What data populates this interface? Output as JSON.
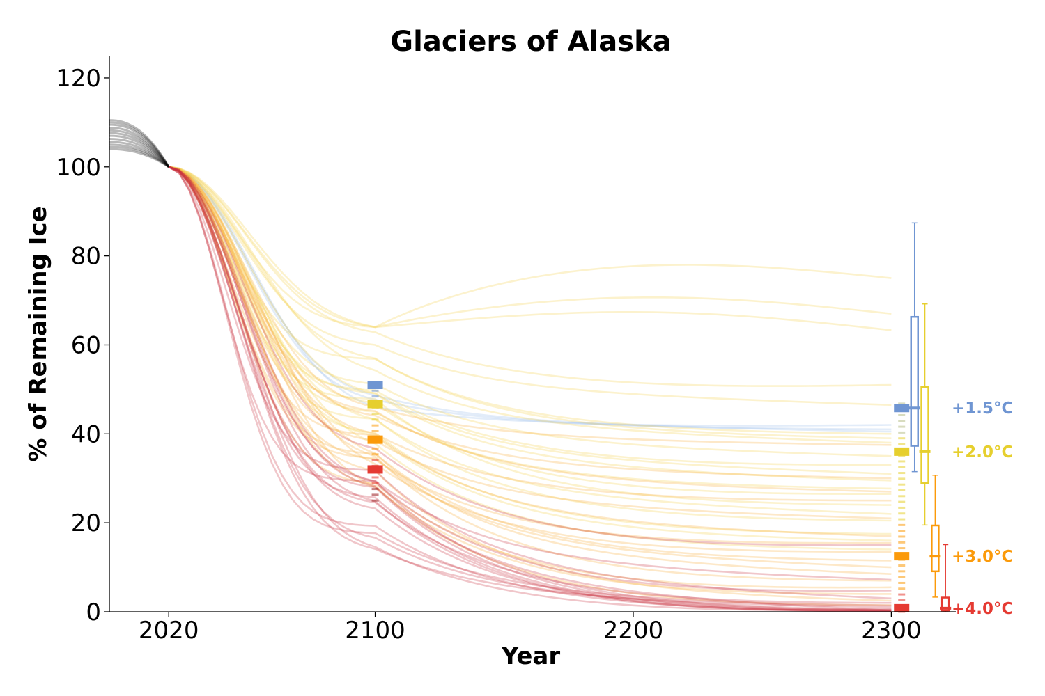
{
  "chart_data": {
    "type": "line",
    "title": "Glaciers of Alaska",
    "xlabel": "Year",
    "ylabel": "% of Remaining Ice",
    "xlim": [
      1997,
      2325
    ],
    "ylim": [
      0,
      125
    ],
    "xticks": [
      2020,
      2100,
      2200,
      2300
    ],
    "yticks": [
      0,
      20,
      40,
      60,
      80,
      100,
      120
    ],
    "grid": false,
    "legend": "right-side text labels",
    "historical": {
      "color": "#000000",
      "x_range": [
        1997,
        2020
      ],
      "start_values": [
        104.0,
        104.5,
        105.0,
        105.6,
        106.3,
        107.0,
        107.6,
        108.2,
        108.8,
        109.5,
        110.0,
        110.5
      ]
    },
    "scenarios": [
      {
        "name": "+1.5°C",
        "color": "#6f95d2",
        "line_color": "#9ec0ea",
        "median_2100": 51,
        "median_2300": 45.8,
        "box_2300": {
          "whisker_low": 31.5,
          "q1": 37.3,
          "median": 45.8,
          "q3": 66.3,
          "whisker_high": 87.4
        },
        "members_2300": [
          42,
          41,
          40.5
        ]
      },
      {
        "name": "+2.0°C",
        "color": "#e6cf2e",
        "line_color": "#f6d45a",
        "median_2100": 46.7,
        "median_2300": 36,
        "box_2300": {
          "whisker_low": 19.5,
          "q1": 28.9,
          "median": 36,
          "q3": 50.5,
          "whisker_high": 69.2
        },
        "members_2300": [
          75,
          67,
          63.3,
          51,
          46.5,
          40,
          39,
          38,
          35,
          33,
          31,
          29.5,
          27.7,
          26.5,
          24,
          22,
          20.5,
          17.5,
          16,
          14
        ]
      },
      {
        "name": "+3.0°C",
        "color": "#fb9a0a",
        "line_color": "#f7b34a",
        "median_2100": 38.7,
        "median_2300": 12.5,
        "box_2300": {
          "whisker_low": 3.3,
          "q1": 9.1,
          "median": 12.5,
          "q3": 19.4,
          "whisker_high": 30.7
        },
        "members_2300": [
          37.5,
          30,
          27,
          25,
          21,
          17,
          15.5,
          13.5,
          11.5,
          10,
          8.5,
          7,
          5.5,
          4,
          2.5,
          1.5
        ]
      },
      {
        "name": "+4.0°C",
        "color": "#e53a32",
        "line_color": "#c8323f",
        "median_2100": 32,
        "median_2300": 0.8,
        "box_2300": {
          "whisker_low": 0,
          "q1": 0.3,
          "median": 0.8,
          "q3": 3.2,
          "whisker_high": 15.1
        },
        "members_2300": [
          15,
          7.2,
          4.8,
          3,
          2,
          1.4,
          1.0,
          0.7,
          0.5,
          0.4,
          0.3,
          0.2,
          0.15,
          0.1,
          0.05,
          0.02
        ]
      }
    ],
    "dashes_2100_range": [
      25,
      51
    ],
    "dashes_2300_range": [
      0,
      47
    ]
  }
}
